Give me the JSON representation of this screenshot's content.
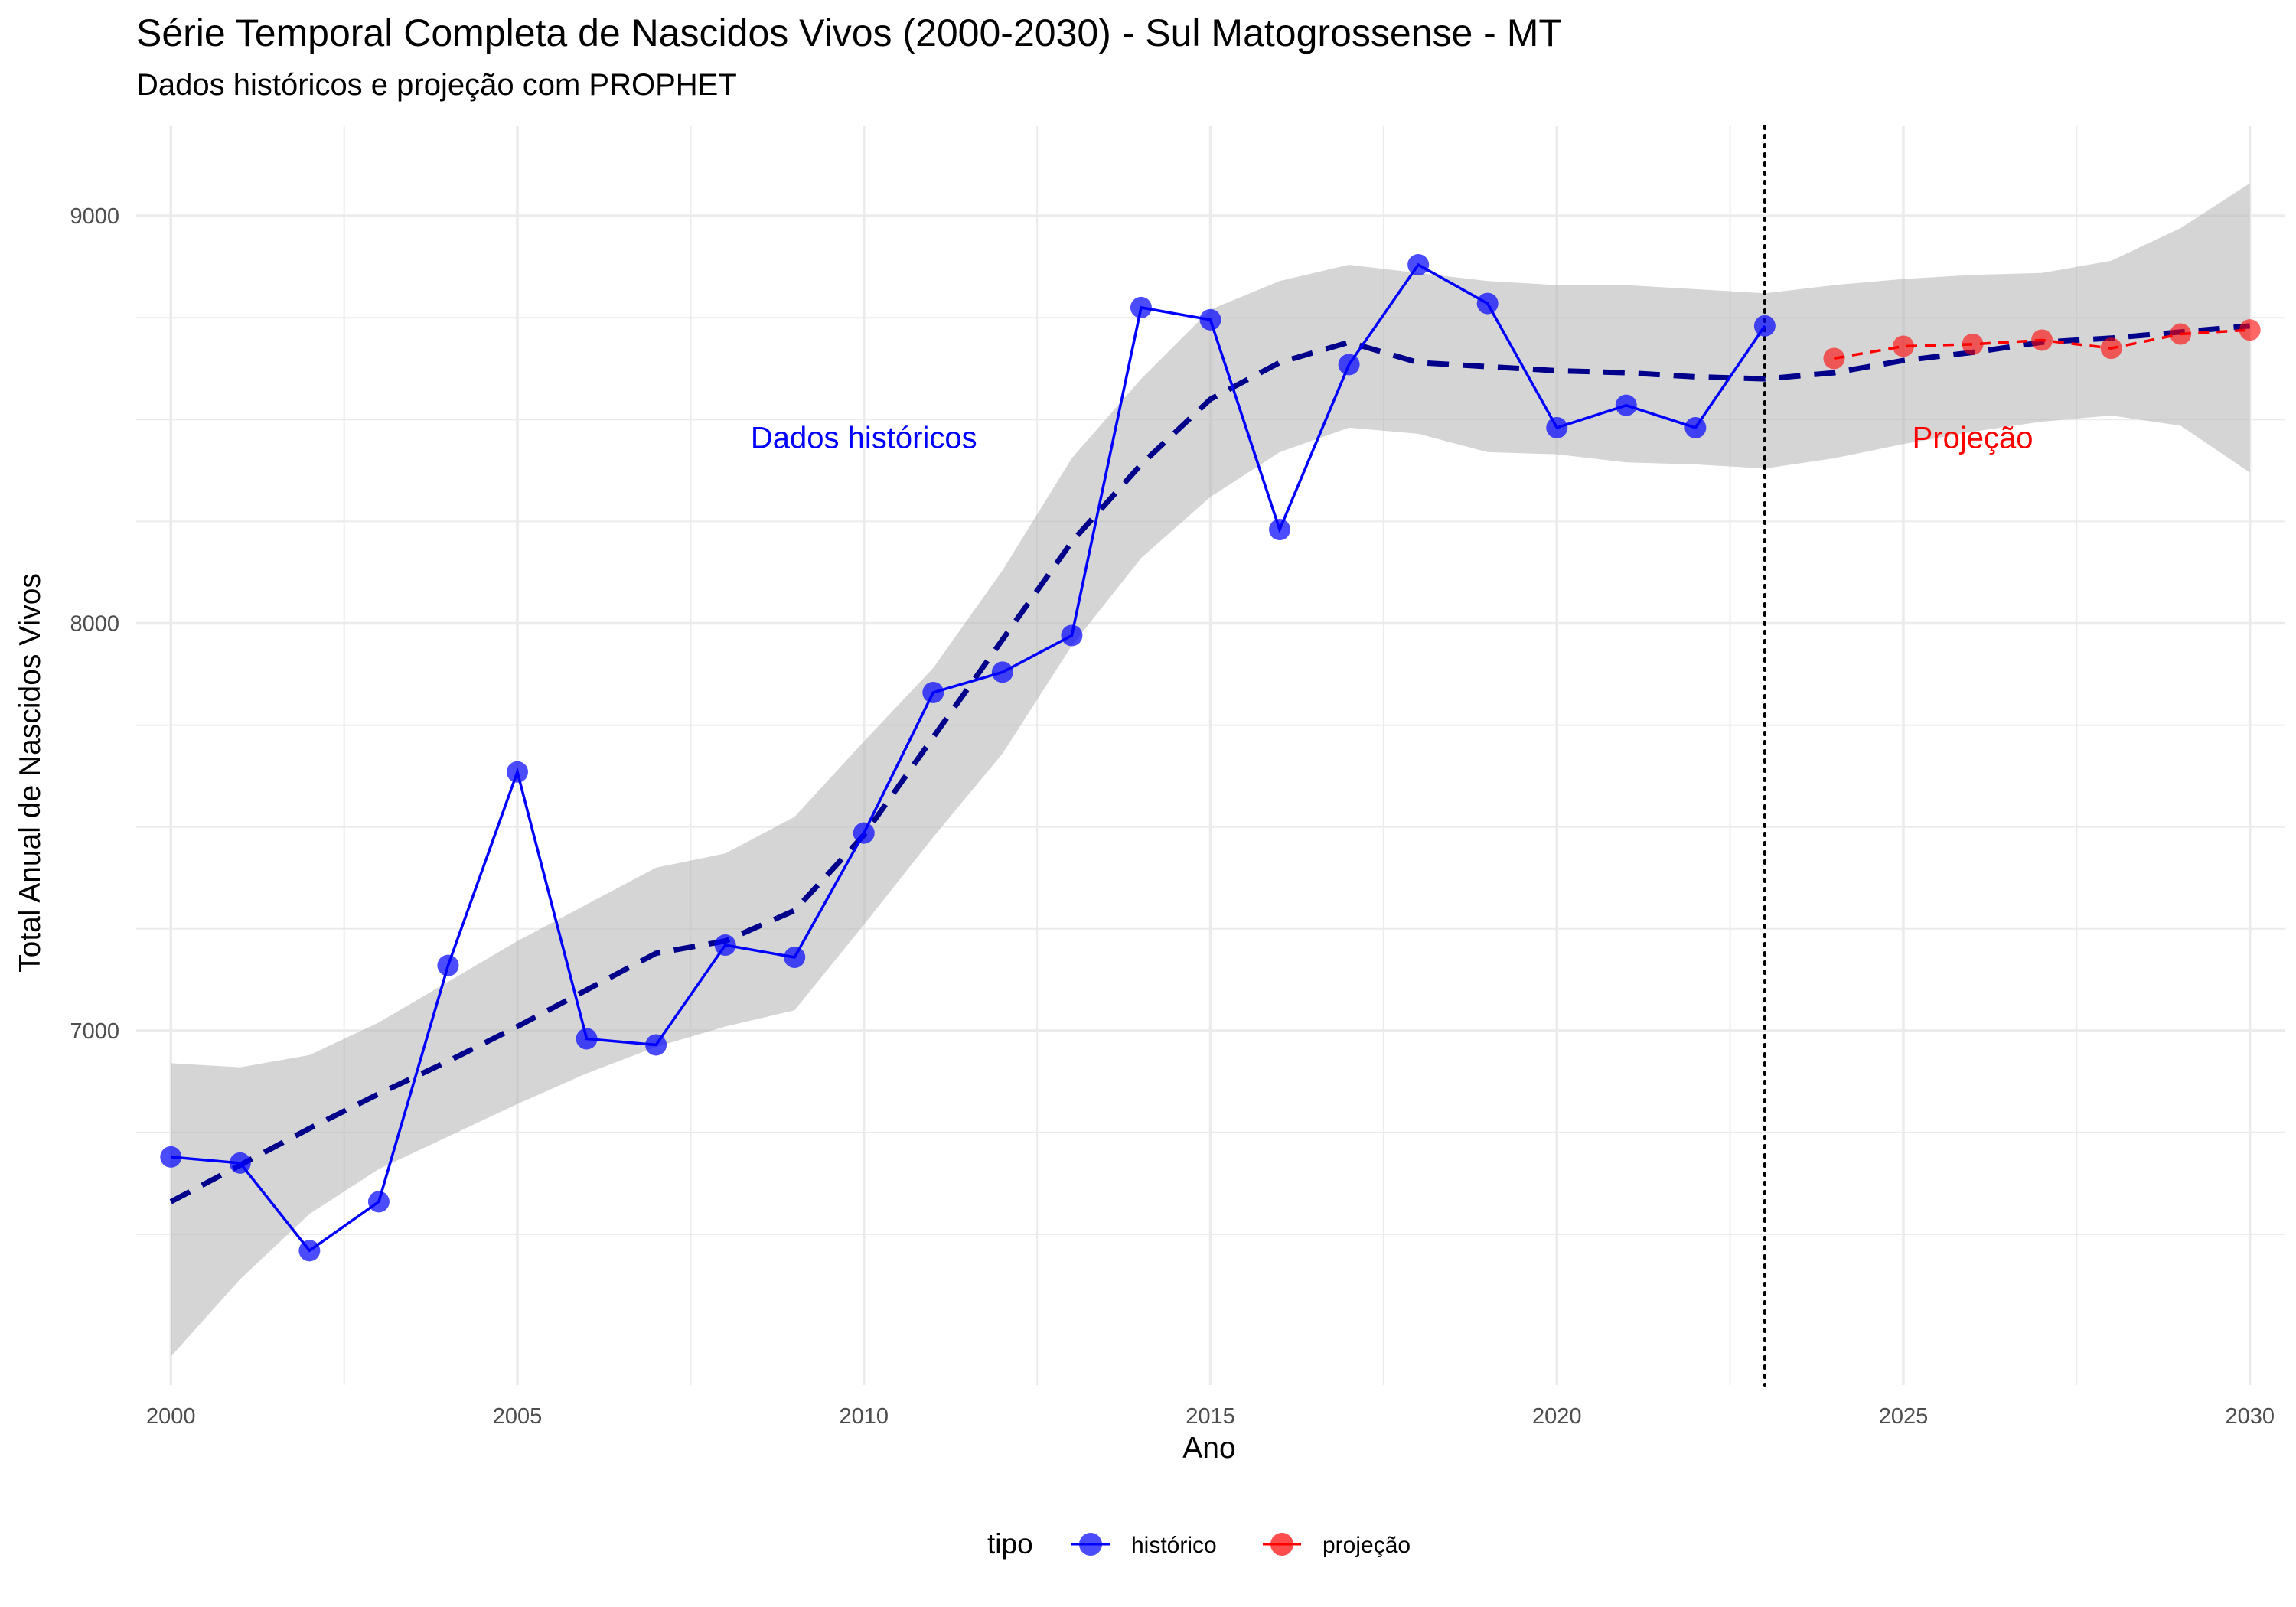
{
  "chart_data": {
    "type": "line",
    "title": "Série Temporal Completa de Nascidos Vivos (2000-2030) -  Sul Matogrossense - MT",
    "subtitle": "Dados históricos e projeção com PROPHET",
    "xlabel": "Ano",
    "ylabel": "Total Anual de Nascidos Vivos",
    "xlim": [
      1999.5,
      2030.5
    ],
    "ylim": [
      6130,
      9220
    ],
    "x_ticks": [
      2000,
      2005,
      2010,
      2015,
      2020,
      2025,
      2030
    ],
    "x_tick_labels": [
      "2000",
      "2005",
      "2010",
      "2015",
      "2020",
      "2025",
      "2030"
    ],
    "y_ticks": [
      7000,
      8000,
      9000
    ],
    "y_tick_labels": [
      "7000",
      "8000",
      "9000"
    ],
    "grid": true,
    "cutoff_year": 2023,
    "annotations": [
      {
        "text": "Dados históricos",
        "x": 2010,
        "y": 8430,
        "color": "#0000ff"
      },
      {
        "text": "Projeção",
        "x": 2026,
        "y": 8430,
        "color": "#ff0000"
      }
    ],
    "series": [
      {
        "name": "histórico",
        "color": "#0000ff",
        "x": [
          2000,
          2001,
          2002,
          2003,
          2004,
          2005,
          2006,
          2007,
          2008,
          2009,
          2010,
          2011,
          2012,
          2013,
          2014,
          2015,
          2016,
          2017,
          2018,
          2019,
          2020,
          2021,
          2022,
          2023
        ],
        "values": [
          6690,
          6675,
          6460,
          6580,
          7160,
          7635,
          6980,
          6965,
          7210,
          7180,
          7485,
          7830,
          7880,
          7970,
          8775,
          8745,
          8230,
          8635,
          8880,
          8785,
          8480,
          8535,
          8480,
          8730
        ]
      },
      {
        "name": "projeção",
        "color": "#ff0000",
        "x": [
          2024,
          2025,
          2026,
          2027,
          2028,
          2029,
          2030
        ],
        "values": [
          8650,
          8680,
          8685,
          8695,
          8675,
          8710,
          8720
        ]
      }
    ],
    "trend": {
      "x": [
        2000,
        2001,
        2002,
        2003,
        2004,
        2005,
        2006,
        2007,
        2008,
        2009,
        2010,
        2011,
        2012,
        2013,
        2014,
        2015,
        2016,
        2017,
        2018,
        2019,
        2020,
        2021,
        2022,
        2023,
        2024,
        2025,
        2026,
        2027,
        2028,
        2029,
        2030
      ],
      "values": [
        6580,
        6670,
        6760,
        6845,
        6925,
        7010,
        7100,
        7190,
        7220,
        7295,
        7480,
        7720,
        7960,
        8200,
        8390,
        8550,
        8640,
        8690,
        8640,
        8630,
        8620,
        8615,
        8605,
        8600,
        8615,
        8645,
        8665,
        8690,
        8700,
        8715,
        8730
      ],
      "lower": [
        6200,
        6390,
        6550,
        6660,
        6740,
        6820,
        6895,
        6960,
        7010,
        7050,
        7260,
        7475,
        7680,
        7945,
        8160,
        8310,
        8420,
        8480,
        8465,
        8420,
        8415,
        8395,
        8390,
        8380,
        8405,
        8440,
        8470,
        8495,
        8510,
        8485,
        8370
      ],
      "upper": [
        6920,
        6910,
        6940,
        7020,
        7120,
        7220,
        7310,
        7400,
        7435,
        7525,
        7710,
        7890,
        8130,
        8405,
        8600,
        8770,
        8840,
        8880,
        8860,
        8840,
        8830,
        8830,
        8820,
        8810,
        8830,
        8845,
        8855,
        8860,
        8890,
        8970,
        9080
      ]
    },
    "legend": {
      "title": "tipo",
      "position": "bottom",
      "items": [
        {
          "label": "histórico",
          "color": "#0000ff"
        },
        {
          "label": "projeção",
          "color": "#ff0000"
        }
      ]
    }
  }
}
